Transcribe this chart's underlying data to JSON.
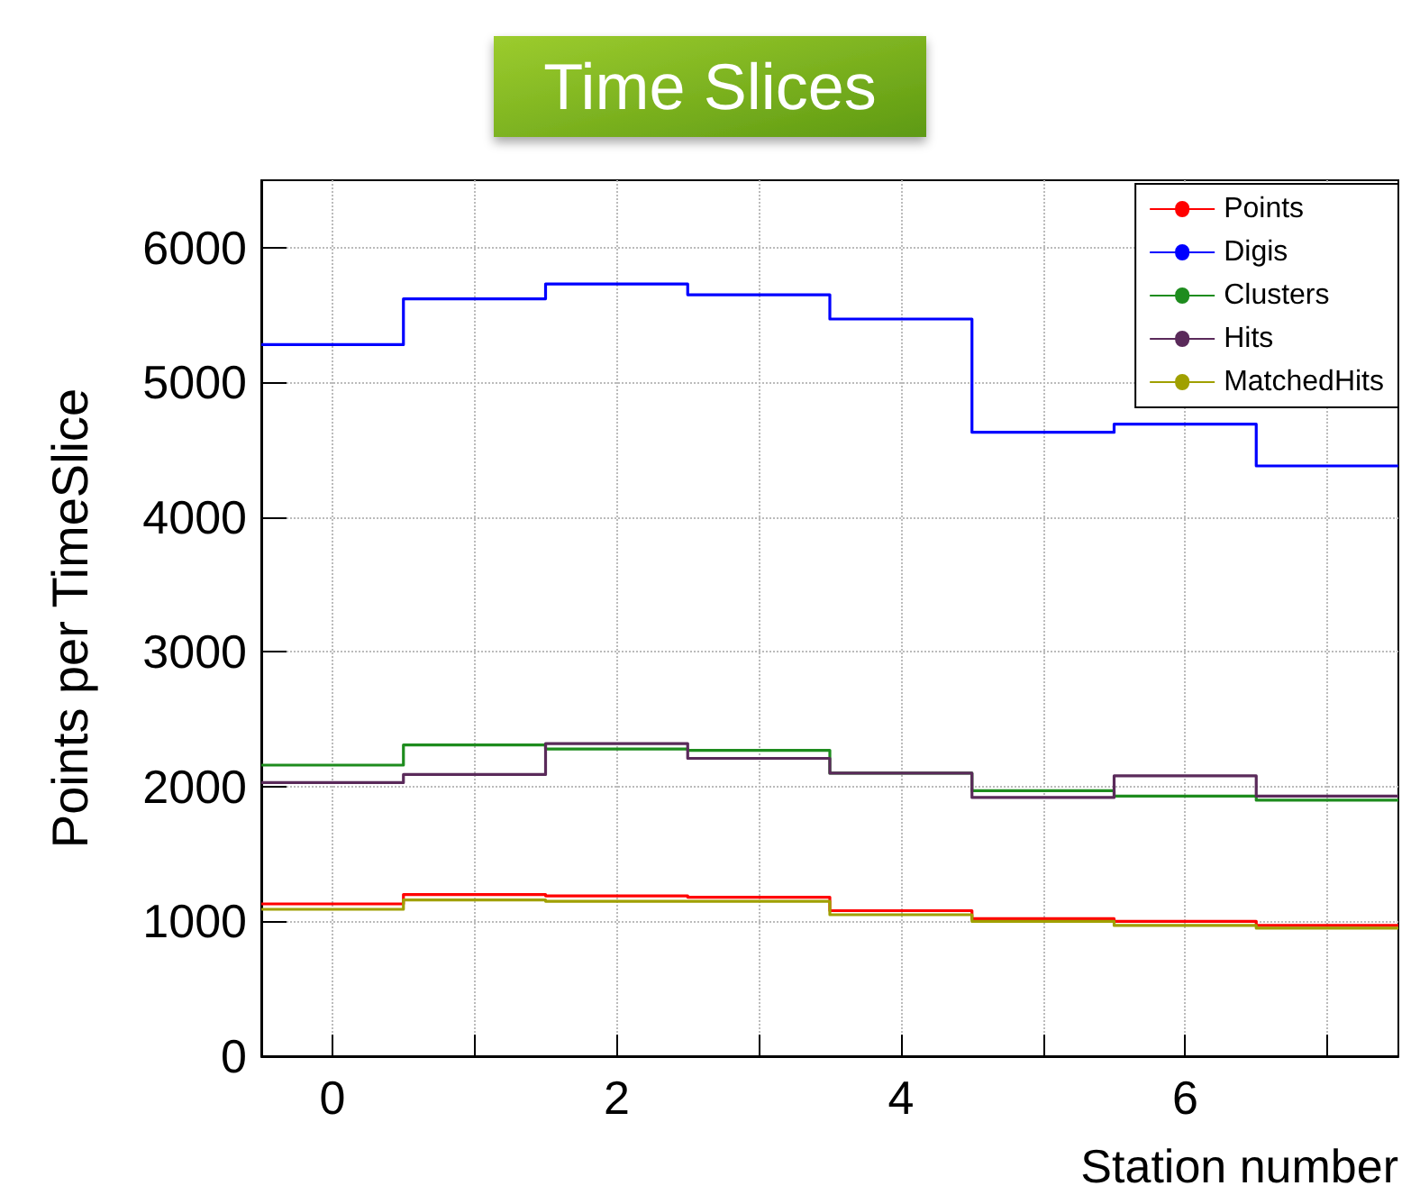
{
  "chart_data": {
    "type": "histogram",
    "title": "Time Slices",
    "xlabel": "Station number",
    "ylabel": "Points per TimeSlice",
    "bins": [
      -0.5,
      0.5,
      1.5,
      2.5,
      3.5,
      4.5,
      5.5,
      6.5,
      7.5
    ],
    "series": [
      {
        "name": "Points",
        "color": "#ff0000",
        "values": [
          1130,
          1200,
          1190,
          1180,
          1080,
          1020,
          1000,
          970
        ]
      },
      {
        "name": "Digis",
        "color": "#0000ff",
        "values": [
          5280,
          5620,
          5730,
          5650,
          5470,
          4630,
          4690,
          4380
        ]
      },
      {
        "name": "Clusters",
        "color": "#1e8c1e",
        "values": [
          2160,
          2310,
          2280,
          2270,
          2100,
          1970,
          1930,
          1900
        ]
      },
      {
        "name": "Hits",
        "color": "#5a2a5a",
        "values": [
          2030,
          2090,
          2320,
          2210,
          2100,
          1920,
          2080,
          1930
        ]
      },
      {
        "name": "MatchedHits",
        "color": "#a0a000",
        "values": [
          1090,
          1160,
          1150,
          1150,
          1050,
          1000,
          970,
          950
        ]
      }
    ],
    "xlim": [
      -0.5,
      7.5
    ],
    "xticks": [
      0,
      {
        "value": 1,
        "label": null
      },
      2,
      {
        "value": 3,
        "label": null
      },
      4,
      {
        "value": 5,
        "label": null
      },
      6,
      {
        "value": 7,
        "label": null
      }
    ],
    "ylim": [
      0,
      6500
    ],
    "yticks": [
      0,
      1000,
      2000,
      3000,
      4000,
      5000,
      6000
    ],
    "grid": true,
    "legend": "top right"
  }
}
